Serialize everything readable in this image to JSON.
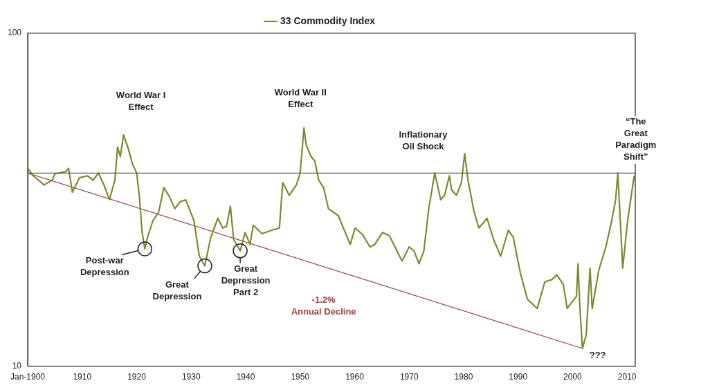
{
  "chart_data": {
    "type": "line",
    "log": "y",
    "grid": false,
    "legend": "top",
    "marker": "none",
    "line_style": "solid",
    "xlim": [
      1900,
      2011.5
    ],
    "ylim": [
      10,
      100
    ],
    "xticks": [
      {
        "value": 1900,
        "label": "Jan-1900"
      },
      1910,
      1920,
      1930,
      1940,
      1950,
      1960,
      1970,
      1980,
      1990,
      2000,
      2010
    ],
    "yticks": [
      10,
      100
    ],
    "series": [
      {
        "name": "33 Commodity Index",
        "color": "#7a8a30",
        "x": [
          1900,
          1901,
          1902.5,
          1903,
          1904.5,
          1905,
          1907,
          1907.5,
          1908.2,
          1909.5,
          1911,
          1912,
          1913,
          1914,
          1915,
          1916,
          1916.5,
          1917,
          1917.6,
          1918.5,
          1919.2,
          1920,
          1920.5,
          1921,
          1921.5,
          1922,
          1923,
          1924,
          1925,
          1926,
          1927,
          1928,
          1929,
          1930.5,
          1931.5,
          1932.5,
          1933.6,
          1934.9,
          1935.8,
          1936.5,
          1937.2,
          1937.8,
          1939,
          1939.9,
          1940.8,
          1941.4,
          1943,
          1944.8,
          1946.2,
          1946.8,
          1948,
          1949.3,
          1950,
          1950.7,
          1951.1,
          1952,
          1952.7,
          1953.4,
          1954.3,
          1955.2,
          1957,
          1959.2,
          1960.1,
          1961.5,
          1962.8,
          1963.7,
          1965.1,
          1966.4,
          1968.7,
          1970,
          1970.9,
          1971.8,
          1972.7,
          1973.6,
          1974.7,
          1975.8,
          1976.5,
          1977.4,
          1977.8,
          1978.7,
          1979.6,
          1980.2,
          1980.8,
          1981.9,
          1982.8,
          1984.3,
          1985.5,
          1986.8,
          1988.2,
          1989.1,
          1990.4,
          1991.7,
          1993.5,
          1994.9,
          1996.2,
          1997.1,
          1998.3,
          1999,
          2000.3,
          2000.7,
          2001,
          2001.3,
          2001.8,
          2002.5,
          2003.2,
          2003.6,
          2004.8,
          2006.1,
          2007,
          2007.9,
          2008.3,
          2009.2,
          2010.1,
          2011.3
        ],
        "values": [
          39.3,
          37.3,
          35.6,
          35,
          36.2,
          37.8,
          38.4,
          39.3,
          33.3,
          36.8,
          37.3,
          36.2,
          38,
          35,
          31.6,
          36.2,
          45.5,
          42.6,
          49.5,
          44.8,
          40.6,
          38,
          32.3,
          25.2,
          22.5,
          24.4,
          27.4,
          28.9,
          34.4,
          32.3,
          29.7,
          31.2,
          31.6,
          27.4,
          21.4,
          20,
          24.4,
          27.8,
          26,
          26.3,
          30.2,
          24,
          22.2,
          25.2,
          23.2,
          26.5,
          25,
          25.6,
          26,
          35.6,
          32.6,
          35,
          38,
          52,
          46.3,
          42.6,
          41.3,
          36.2,
          34.4,
          29.7,
          28.3,
          23.2,
          26,
          24.8,
          22.8,
          23.2,
          25.2,
          24.6,
          20.7,
          22.8,
          22.2,
          20.3,
          22.2,
          29.7,
          38,
          31.6,
          32.6,
          37.3,
          33.8,
          32.6,
          35.6,
          43.5,
          36.2,
          29.2,
          26,
          27.8,
          24,
          21.4,
          25.6,
          24.4,
          19.1,
          15.9,
          14.9,
          17.9,
          18.2,
          18.8,
          17.6,
          14.9,
          15.9,
          16.2,
          20.3,
          15.4,
          11.3,
          12.4,
          19.7,
          14.9,
          19.4,
          22.8,
          26.5,
          31.6,
          38,
          19.7,
          27.4,
          37.3
        ]
      },
      {
        "color": "#a0403a",
        "x": [
          1900,
          2001.8
        ],
        "values": [
          38,
          11.3
        ]
      }
    ],
    "ref_lines": [
      {
        "axis": "y",
        "value": 38,
        "color": "#555555"
      }
    ],
    "annotations": [
      {
        "text": "World War I\nEffect",
        "x": 1917.6,
        "y": 49.5
      },
      {
        "text": "World War II\nEffect",
        "x": 1950.7,
        "y": 52
      },
      {
        "text": "Inflationary\nOil Shock",
        "x": 1980.2,
        "y": 43.5
      },
      {
        "text": "“The\nGreat\nParadigm\nShift”",
        "x": 2008.3,
        "y": 38
      },
      {
        "text": "Post-war\nDepression",
        "x": 1921.5,
        "y": 22.5
      },
      {
        "text": "Great\nDepression",
        "x": 1932.5,
        "y": 20
      },
      {
        "text": "Great\nDepression\nPart 2",
        "x": 1939,
        "y": 22.2
      },
      "-1.2%\nAnnual Decline",
      {
        "text": "???",
        "x": 2001.8,
        "y": 11.3
      }
    ]
  }
}
